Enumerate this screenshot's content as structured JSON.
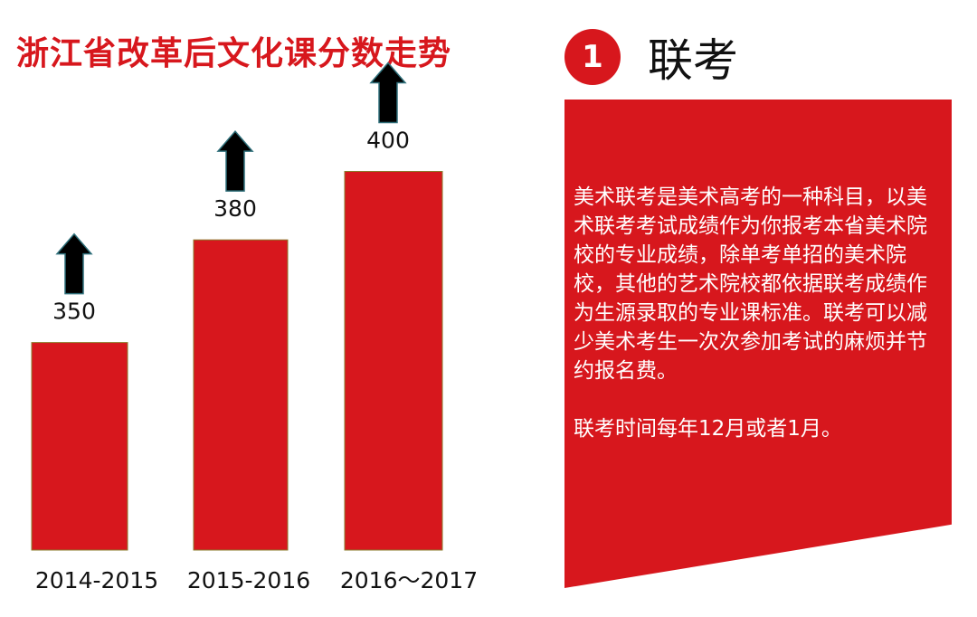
{
  "title": "浙江省改革后文化课分数走势",
  "section": {
    "number": "1",
    "title": "联考"
  },
  "info": {
    "paragraph1": "美术联考是美术高考的一种科目，以美术联考考试成绩作为你报考本省美术院校的专业成绩，除单考单招的美术院校，其他的艺术院校都依据联考成绩作为生源录取的专业课标准。联考可以减少美术考生一次次参加考试的麻烦并节约报名费。",
    "paragraph2": "联考时间每年12月或者1月。"
  },
  "colors": {
    "accent": "#d7171d",
    "arrow": "#000000",
    "arrow_outline": "#2e6f7a"
  },
  "chart_data": {
    "type": "bar",
    "title": "浙江省改革后文化课分数走势",
    "categories": [
      "2014-2015",
      "2015-2016",
      "2016～2017"
    ],
    "values": [
      350,
      380,
      400
    ],
    "data_labels": [
      "350",
      "380",
      "400"
    ],
    "trend_markers": "up-arrow-icon"
  }
}
